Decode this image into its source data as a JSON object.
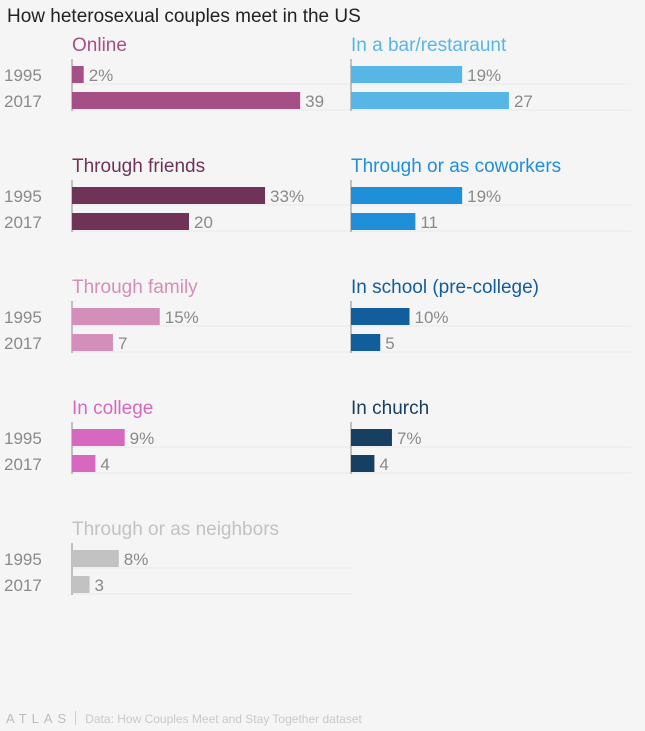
{
  "chart_data": {
    "type": "bar",
    "title": "How heterosexual couples meet in the US",
    "years": [
      "1995",
      "2017"
    ],
    "unit": "%",
    "source": "Data: How Couples Meet and Stay Together dataset",
    "logo": "ATLAS",
    "panels": [
      {
        "name": "Online",
        "color": "#a64f86",
        "values": [
          2,
          39
        ]
      },
      {
        "name": "In a bar/restaraunt",
        "color": "#58b6e6",
        "values": [
          19,
          27
        ]
      },
      {
        "name": "Through friends",
        "color": "#6e3356",
        "values": [
          33,
          20
        ]
      },
      {
        "name": "Through or as coworkers",
        "color": "#1f8fda",
        "values": [
          19,
          11
        ]
      },
      {
        "name": "Through family",
        "color": "#d38fba",
        "values": [
          15,
          7
        ]
      },
      {
        "name": "In school (pre-college)",
        "color": "#125d9c",
        "values": [
          10,
          5
        ]
      },
      {
        "name": "In college",
        "color": "#d768c0",
        "values": [
          9,
          4
        ]
      },
      {
        "name": "In church",
        "color": "#163f62",
        "values": [
          7,
          4
        ]
      },
      {
        "name": "Through or as neighbors",
        "color": "#c2c2c2",
        "values": [
          8,
          3
        ]
      }
    ]
  }
}
